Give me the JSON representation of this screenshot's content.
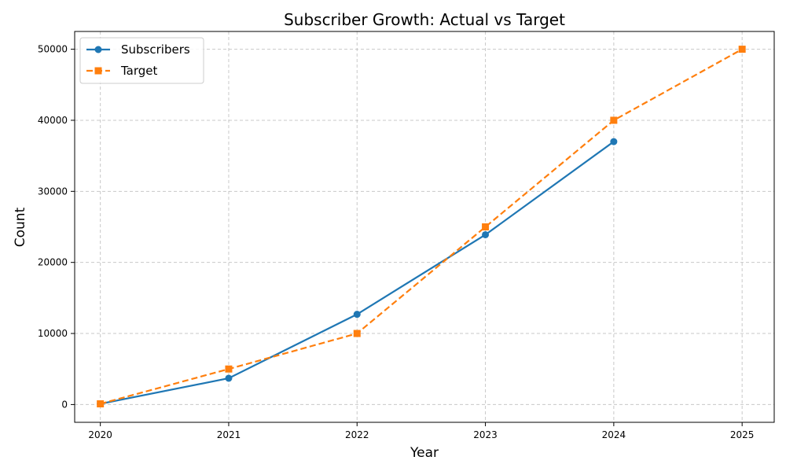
{
  "chart_data": {
    "type": "line",
    "title": "Subscriber Growth: Actual vs Target",
    "xlabel": "Year",
    "ylabel": "Count",
    "x": [
      2020,
      2021,
      2022,
      2023,
      2024,
      2025
    ],
    "xlim": [
      2019.8,
      2025.25
    ],
    "ylim": [
      -2500,
      52500
    ],
    "yticks": [
      0,
      10000,
      20000,
      30000,
      40000,
      50000
    ],
    "grid": true,
    "legend_position": "top-left",
    "series": [
      {
        "name": "Subscribers",
        "x": [
          2020,
          2021,
          2022,
          2023,
          2024
        ],
        "values": [
          100,
          3700,
          12700,
          23900,
          37000
        ],
        "color": "#1f77b4",
        "linestyle": "solid",
        "marker": "circle"
      },
      {
        "name": "Target",
        "x": [
          2020,
          2021,
          2022,
          2023,
          2024,
          2025
        ],
        "values": [
          100,
          5000,
          10000,
          25000,
          40000,
          50000
        ],
        "color": "#ff7f0e",
        "linestyle": "dashed",
        "marker": "square"
      }
    ]
  }
}
